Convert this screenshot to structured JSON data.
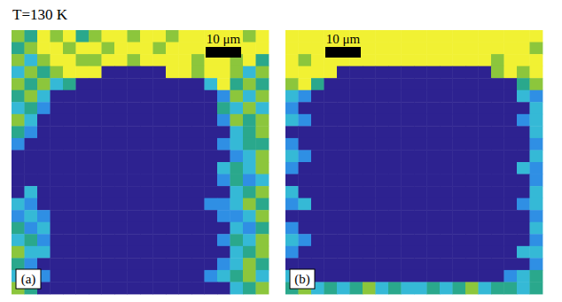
{
  "chart_data": {
    "type": "heatmap",
    "title": "T=130 K",
    "tick_labels": false,
    "colors": [
      "#2d2290",
      "#2f8fe4",
      "#35b9d6",
      "#2aa88c",
      "#8cc63c",
      "#f1f133"
    ],
    "panels": [
      {
        "label": "(a)",
        "scale_bar": "10 μm",
        "cells": [
          [
            4,
            3,
            5,
            4,
            5,
            3,
            4,
            5,
            5,
            4,
            5,
            5,
            4,
            5,
            5,
            5,
            5,
            5,
            4,
            5
          ],
          [
            3,
            4,
            5,
            5,
            4,
            5,
            5,
            4,
            5,
            5,
            5,
            4,
            5,
            5,
            5,
            5,
            5,
            5,
            5,
            5
          ],
          [
            4,
            2,
            4,
            5,
            5,
            4,
            4,
            5,
            5,
            4,
            5,
            5,
            5,
            5,
            4,
            5,
            5,
            4,
            5,
            3
          ],
          [
            2,
            4,
            3,
            4,
            5,
            5,
            5,
            0,
            0,
            0,
            0,
            0,
            5,
            5,
            4,
            5,
            5,
            4,
            2,
            4
          ],
          [
            4,
            3,
            4,
            2,
            3,
            0,
            0,
            0,
            0,
            0,
            0,
            0,
            0,
            0,
            0,
            2,
            5,
            3,
            4,
            3
          ],
          [
            3,
            4,
            2,
            0,
            0,
            0,
            0,
            0,
            0,
            0,
            0,
            0,
            0,
            0,
            0,
            0,
            1,
            4,
            2,
            4
          ],
          [
            2,
            3,
            1,
            0,
            0,
            0,
            0,
            0,
            0,
            0,
            0,
            0,
            0,
            0,
            0,
            0,
            3,
            2,
            4,
            2
          ],
          [
            4,
            2,
            0,
            0,
            0,
            0,
            0,
            0,
            0,
            0,
            0,
            0,
            0,
            0,
            0,
            0,
            1,
            4,
            3,
            4
          ],
          [
            3,
            1,
            0,
            0,
            0,
            0,
            0,
            0,
            0,
            0,
            0,
            0,
            0,
            0,
            0,
            0,
            0,
            2,
            3,
            4
          ],
          [
            1,
            0,
            0,
            0,
            0,
            0,
            0,
            0,
            0,
            0,
            0,
            0,
            0,
            0,
            0,
            0,
            1,
            2,
            3,
            3
          ],
          [
            0,
            0,
            0,
            0,
            0,
            0,
            0,
            0,
            0,
            0,
            0,
            0,
            0,
            0,
            0,
            0,
            0,
            1,
            2,
            4
          ],
          [
            0,
            0,
            0,
            0,
            0,
            0,
            0,
            0,
            0,
            0,
            0,
            0,
            0,
            0,
            0,
            0,
            2,
            3,
            2,
            4
          ],
          [
            0,
            0,
            0,
            0,
            0,
            0,
            0,
            0,
            0,
            0,
            0,
            0,
            0,
            0,
            0,
            0,
            1,
            3,
            1,
            2
          ],
          [
            0,
            2,
            0,
            0,
            0,
            0,
            0,
            0,
            0,
            0,
            0,
            0,
            0,
            0,
            0,
            0,
            0,
            2,
            3,
            4
          ],
          [
            2,
            1,
            0,
            0,
            0,
            0,
            0,
            0,
            0,
            0,
            0,
            0,
            0,
            0,
            0,
            1,
            1,
            2,
            4,
            3
          ],
          [
            1,
            2,
            1,
            0,
            0,
            0,
            0,
            0,
            0,
            0,
            0,
            0,
            0,
            0,
            0,
            0,
            1,
            1,
            2,
            4
          ],
          [
            3,
            1,
            2,
            0,
            0,
            0,
            0,
            0,
            0,
            0,
            0,
            0,
            0,
            0,
            0,
            0,
            0,
            2,
            1,
            3
          ],
          [
            2,
            3,
            1,
            0,
            0,
            0,
            0,
            0,
            0,
            0,
            0,
            0,
            0,
            0,
            0,
            0,
            1,
            3,
            2,
            4
          ],
          [
            4,
            2,
            2,
            0,
            0,
            0,
            0,
            0,
            0,
            0,
            0,
            0,
            0,
            0,
            0,
            0,
            0,
            2,
            3,
            4
          ],
          [
            3,
            1,
            0,
            0,
            0,
            0,
            0,
            0,
            0,
            0,
            0,
            0,
            0,
            0,
            0,
            0,
            1,
            2,
            4,
            3
          ],
          [
            2,
            4,
            1,
            0,
            0,
            0,
            0,
            0,
            0,
            0,
            0,
            0,
            0,
            0,
            0,
            1,
            2,
            3,
            4,
            2
          ],
          [
            4,
            3,
            0,
            0,
            0,
            0,
            0,
            0,
            0,
            0,
            0,
            0,
            0,
            0,
            0,
            0,
            0,
            2,
            3,
            4
          ]
        ]
      },
      {
        "label": "(b)",
        "scale_bar": "10 μm",
        "cells": [
          [
            5,
            5,
            5,
            5,
            5,
            5,
            5,
            5,
            5,
            5,
            5,
            5,
            5,
            5,
            5,
            5,
            5,
            5,
            5,
            5
          ],
          [
            5,
            5,
            5,
            5,
            5,
            5,
            5,
            5,
            5,
            5,
            5,
            5,
            5,
            5,
            5,
            5,
            5,
            5,
            5,
            4
          ],
          [
            5,
            4,
            5,
            5,
            5,
            5,
            5,
            5,
            5,
            5,
            5,
            5,
            5,
            5,
            5,
            5,
            4,
            5,
            5,
            5
          ],
          [
            5,
            5,
            5,
            5,
            0,
            0,
            0,
            0,
            0,
            0,
            0,
            0,
            0,
            0,
            0,
            0,
            4,
            5,
            4,
            5
          ],
          [
            4,
            5,
            3,
            0,
            0,
            0,
            0,
            0,
            0,
            0,
            0,
            0,
            0,
            0,
            0,
            0,
            0,
            0,
            3,
            4
          ],
          [
            2,
            1,
            0,
            0,
            0,
            0,
            0,
            0,
            0,
            0,
            0,
            0,
            0,
            0,
            0,
            0,
            0,
            0,
            2,
            1
          ],
          [
            1,
            0,
            0,
            0,
            0,
            0,
            0,
            0,
            0,
            0,
            0,
            0,
            0,
            0,
            0,
            0,
            0,
            0,
            0,
            2
          ],
          [
            2,
            1,
            0,
            0,
            0,
            0,
            0,
            0,
            0,
            0,
            0,
            0,
            0,
            0,
            0,
            0,
            0,
            0,
            1,
            2
          ],
          [
            0,
            0,
            0,
            0,
            0,
            0,
            0,
            0,
            0,
            0,
            0,
            0,
            0,
            0,
            0,
            0,
            0,
            0,
            0,
            2
          ],
          [
            1,
            0,
            0,
            0,
            0,
            0,
            0,
            0,
            0,
            0,
            0,
            0,
            0,
            0,
            0,
            0,
            0,
            0,
            0,
            1
          ],
          [
            2,
            1,
            0,
            0,
            0,
            0,
            0,
            0,
            0,
            0,
            0,
            0,
            0,
            0,
            0,
            0,
            0,
            0,
            0,
            2
          ],
          [
            1,
            0,
            0,
            0,
            0,
            0,
            0,
            0,
            0,
            0,
            0,
            0,
            0,
            0,
            0,
            0,
            0,
            0,
            2,
            1
          ],
          [
            0,
            0,
            0,
            0,
            0,
            0,
            0,
            0,
            0,
            0,
            0,
            0,
            0,
            0,
            0,
            0,
            0,
            0,
            0,
            1
          ],
          [
            2,
            0,
            0,
            0,
            0,
            0,
            0,
            0,
            0,
            0,
            0,
            0,
            0,
            0,
            0,
            0,
            0,
            0,
            0,
            2
          ],
          [
            1,
            2,
            0,
            0,
            0,
            0,
            0,
            0,
            0,
            0,
            0,
            0,
            0,
            0,
            0,
            0,
            0,
            0,
            1,
            2
          ],
          [
            0,
            0,
            0,
            0,
            0,
            0,
            0,
            0,
            0,
            0,
            0,
            0,
            0,
            0,
            0,
            0,
            0,
            0,
            0,
            1
          ],
          [
            1,
            0,
            0,
            0,
            0,
            0,
            0,
            0,
            0,
            0,
            0,
            0,
            0,
            0,
            0,
            0,
            0,
            0,
            0,
            2
          ],
          [
            2,
            1,
            0,
            0,
            0,
            0,
            0,
            0,
            0,
            0,
            0,
            0,
            0,
            0,
            0,
            0,
            0,
            0,
            0,
            1
          ],
          [
            1,
            0,
            0,
            0,
            0,
            0,
            0,
            0,
            0,
            0,
            0,
            0,
            0,
            0,
            0,
            0,
            0,
            0,
            2,
            2
          ],
          [
            0,
            0,
            0,
            0,
            0,
            0,
            0,
            0,
            0,
            0,
            0,
            0,
            0,
            0,
            0,
            0,
            0,
            0,
            0,
            1
          ],
          [
            2,
            1,
            0,
            0,
            0,
            0,
            0,
            0,
            0,
            0,
            0,
            0,
            0,
            0,
            0,
            0,
            0,
            1,
            2,
            3
          ],
          [
            3,
            4,
            2,
            3,
            2,
            3,
            4,
            2,
            3,
            2,
            2,
            3,
            2,
            3,
            4,
            2,
            3,
            3,
            2,
            3
          ]
        ]
      }
    ]
  }
}
